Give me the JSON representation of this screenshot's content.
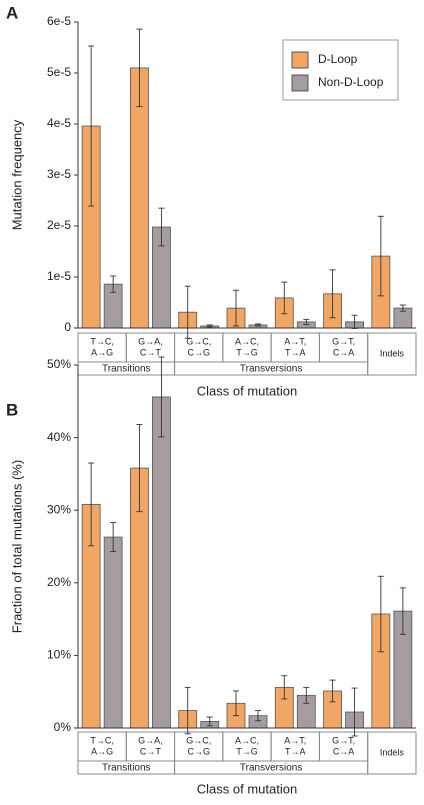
{
  "chart_data": [
    {
      "type": "bar",
      "panel_label": "A",
      "ylabel": "Mutation frequency",
      "xlabel": "Class of mutation",
      "groups": [
        {
          "name": "Transitions",
          "categories": [
            [
              "T→C,",
              "A→G"
            ],
            [
              "G→A,",
              "C→T"
            ]
          ]
        },
        {
          "name": "Transversions",
          "categories": [
            [
              "G→C,",
              "C→G"
            ],
            [
              "A→C,",
              "T→G"
            ],
            [
              "A→T,",
              "T→A"
            ],
            [
              "G→T,",
              "C→A"
            ]
          ]
        },
        {
          "name": null,
          "categories": [
            [
              "Indels"
            ]
          ]
        }
      ],
      "series": [
        {
          "name": "D-Loop",
          "color": "#f2a663",
          "values": [
            3.96e-05,
            5.1e-05,
            3.1e-06,
            3.9e-06,
            5.9e-06,
            6.7e-06,
            1.41e-05
          ],
          "errors": [
            1.57e-05,
            7.6e-06,
            5.1e-06,
            3.5e-06,
            3.1e-06,
            4.7e-06,
            7.8e-06
          ]
        },
        {
          "name": "Non-D-Loop",
          "color": "#a59ca2",
          "values": [
            8.6e-06,
            1.98e-05,
            4e-07,
            6e-07,
            1.2e-06,
            1.2e-06,
            3.9e-06
          ],
          "errors": [
            1.6e-06,
            3.7e-06,
            2e-07,
            2e-07,
            5e-07,
            1.3e-06,
            6e-07
          ]
        }
      ],
      "ylim": [
        0,
        6e-05
      ],
      "yticks": [
        0,
        {
          "value": 1e-05,
          "label": "1e-5"
        },
        {
          "value": 2e-05,
          "label": "2e-5"
        },
        {
          "value": 3e-05,
          "label": "3e-5"
        },
        {
          "value": 4e-05,
          "label": "4e-5"
        },
        {
          "value": 5e-05,
          "label": "5e-5"
        },
        {
          "value": 6e-05,
          "label": "6e-5"
        }
      ],
      "legend": "upper right"
    },
    {
      "type": "bar",
      "panel_label": "B",
      "ylabel": "Fraction of total mutations (%)",
      "xlabel": "Class of mutation",
      "groups": [
        {
          "name": "Transitions",
          "categories": [
            [
              "T→C,",
              "A→G"
            ],
            [
              "G→A,",
              "C→T"
            ]
          ]
        },
        {
          "name": "Transversions",
          "categories": [
            [
              "G→C,",
              "C→G"
            ],
            [
              "A→C,",
              "T→G"
            ],
            [
              "A→T,",
              "T→A"
            ],
            [
              "G→T,",
              "C→A"
            ]
          ]
        },
        {
          "name": null,
          "categories": [
            [
              "Indels"
            ]
          ]
        }
      ],
      "series": [
        {
          "color": "#f2a663",
          "values": [
            30.8,
            35.8,
            2.4,
            3.4,
            5.6,
            5.1,
            15.7
          ],
          "errors": [
            5.7,
            6,
            3.2,
            1.7,
            1.6,
            1.5,
            5.2
          ]
        },
        {
          "color": "#a59ca2",
          "values": [
            26.3,
            45.6,
            0.9,
            1.7,
            4.5,
            2.2,
            16.1
          ],
          "errors": [
            2,
            5.5,
            0.6,
            0.7,
            1.1,
            3.3,
            3.2
          ]
        }
      ],
      "ylim": [
        0,
        50
      ],
      "yticks": [
        {
          "value": 0,
          "label": "0%"
        },
        {
          "value": 10,
          "label": "10%"
        },
        {
          "value": 20,
          "label": "20%"
        },
        {
          "value": 30,
          "label": "30%"
        },
        {
          "value": 40,
          "label": "40%"
        },
        {
          "value": 50,
          "label": "50%"
        }
      ]
    }
  ]
}
